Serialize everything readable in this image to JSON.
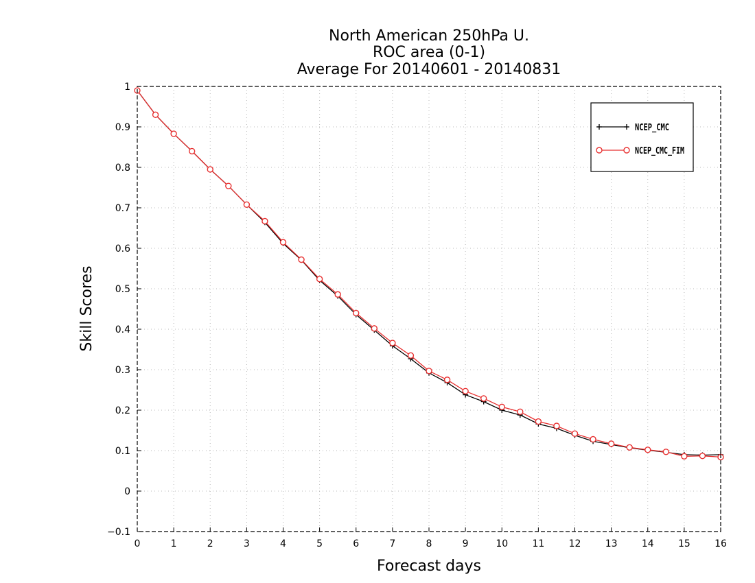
{
  "chart_data": {
    "type": "line",
    "title": [
      "North American 250hPa U.",
      "ROC area (0-1)",
      "Average For 20140601 - 20140831"
    ],
    "xlabel": "Forecast days",
    "ylabel": "Skill Scores",
    "xlim": [
      0,
      16
    ],
    "ylim": [
      -0.1,
      1
    ],
    "xticks": [
      0,
      1,
      2,
      3,
      4,
      5,
      6,
      7,
      8,
      9,
      10,
      11,
      12,
      13,
      14,
      15,
      16
    ],
    "yticks": [
      -0.1,
      0,
      0.1,
      0.2,
      0.3,
      0.4,
      0.5,
      0.6,
      0.7,
      0.8,
      0.9,
      1
    ],
    "ytick_labels": [
      "−0.1",
      "0",
      "0.1",
      "0.2",
      "0.3",
      "0.4",
      "0.5",
      "0.6",
      "0.7",
      "0.8",
      "0.9",
      "1"
    ],
    "grid": true,
    "legend_position": "top-right",
    "x": [
      0,
      0.5,
      1,
      1.5,
      2,
      2.5,
      3,
      3.5,
      4,
      4.5,
      5,
      5.5,
      6,
      6.5,
      7,
      7.5,
      8,
      8.5,
      9,
      9.5,
      10,
      10.5,
      11,
      11.5,
      12,
      12.5,
      13,
      13.5,
      14,
      14.5,
      15,
      15.5,
      16
    ],
    "series": [
      {
        "name": "NCEP_CMC",
        "color": "#000000",
        "marker": "plus",
        "values": [
          0.99,
          0.93,
          0.883,
          0.84,
          0.795,
          0.754,
          0.708,
          0.664,
          0.612,
          0.571,
          0.521,
          0.482,
          0.436,
          0.398,
          0.359,
          0.327,
          0.292,
          0.268,
          0.238,
          0.221,
          0.2,
          0.188,
          0.166,
          0.155,
          0.138,
          0.123,
          0.115,
          0.107,
          0.101,
          0.096,
          0.09,
          0.089,
          0.09
        ]
      },
      {
        "name": "NCEP_CMC_FIM",
        "color": "#e83030",
        "marker": "circle",
        "values": [
          0.99,
          0.93,
          0.883,
          0.84,
          0.795,
          0.754,
          0.708,
          0.667,
          0.615,
          0.572,
          0.524,
          0.486,
          0.44,
          0.402,
          0.366,
          0.335,
          0.297,
          0.275,
          0.247,
          0.229,
          0.208,
          0.196,
          0.172,
          0.161,
          0.142,
          0.128,
          0.117,
          0.108,
          0.102,
          0.097,
          0.086,
          0.087,
          0.084
        ]
      }
    ]
  }
}
